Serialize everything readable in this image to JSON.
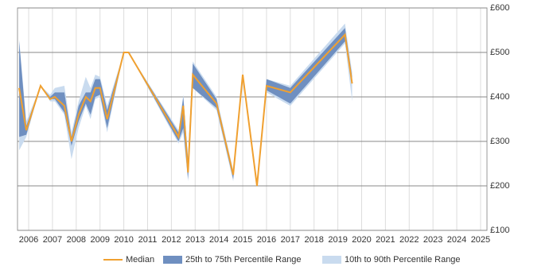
{
  "chart_data": {
    "type": "range-line",
    "x": [
      2005.6,
      2005.9,
      2006.5,
      2006.9,
      2007.1,
      2007.5,
      2007.8,
      2008.1,
      2008.4,
      2008.6,
      2008.8,
      2009.0,
      2009.3,
      2010.0,
      2010.2,
      2012.3,
      2012.5,
      2012.7,
      2012.9,
      2013.9,
      2014.6,
      2015.0,
      2015.6,
      2016.0,
      2017.0,
      2019.3,
      2019.6
    ],
    "series": [
      {
        "name": "Median",
        "color": "#f0a030",
        "values": [
          420,
          325,
          425,
          395,
          400,
          380,
          300,
          360,
          400,
          390,
          420,
          420,
          350,
          500,
          500,
          310,
          380,
          230,
          450,
          385,
          225,
          450,
          200,
          425,
          410,
          540,
          430
        ]
      },
      {
        "name": "25th to 75th Percentile Range",
        "color": "#6f8fc0",
        "low": [
          310,
          315,
          425,
          395,
          395,
          365,
          290,
          345,
          385,
          360,
          400,
          405,
          330,
          500,
          500,
          300,
          330,
          215,
          420,
          375,
          215,
          450,
          200,
          415,
          385,
          525,
          430
        ],
        "high": [
          525,
          335,
          425,
          400,
          410,
          410,
          310,
          380,
          410,
          410,
          440,
          440,
          370,
          500,
          500,
          320,
          400,
          260,
          475,
          395,
          230,
          450,
          200,
          440,
          420,
          555,
          445
        ]
      },
      {
        "name": "10th to 90th Percentile Range",
        "color": "#c9dbef",
        "low": [
          280,
          310,
          425,
          390,
          390,
          360,
          260,
          330,
          380,
          350,
          395,
          400,
          320,
          500,
          500,
          295,
          320,
          210,
          420,
          370,
          210,
          450,
          200,
          410,
          380,
          520,
          390
        ],
        "high": [
          530,
          345,
          425,
          405,
          420,
          425,
          320,
          390,
          445,
          420,
          450,
          445,
          380,
          500,
          500,
          325,
          405,
          265,
          480,
          400,
          235,
          450,
          200,
          440,
          425,
          565,
          455
        ]
      }
    ],
    "xlim": [
      2005.53,
      2025.27
    ],
    "xticks": [
      2006,
      2007,
      2008,
      2009,
      2010,
      2011,
      2012,
      2013,
      2014,
      2015,
      2016,
      2017,
      2018,
      2019,
      2020,
      2021,
      2022,
      2023,
      2024,
      2025
    ],
    "ylim": [
      100,
      600
    ],
    "yticks": [
      {
        "value": 100,
        "label": "£100"
      },
      {
        "value": 200,
        "label": "£200"
      },
      {
        "value": 300,
        "label": "£300"
      },
      {
        "value": 400,
        "label": "£400"
      },
      {
        "value": 500,
        "label": "£500"
      },
      {
        "value": 600,
        "label": "£600"
      }
    ],
    "grid": true
  }
}
